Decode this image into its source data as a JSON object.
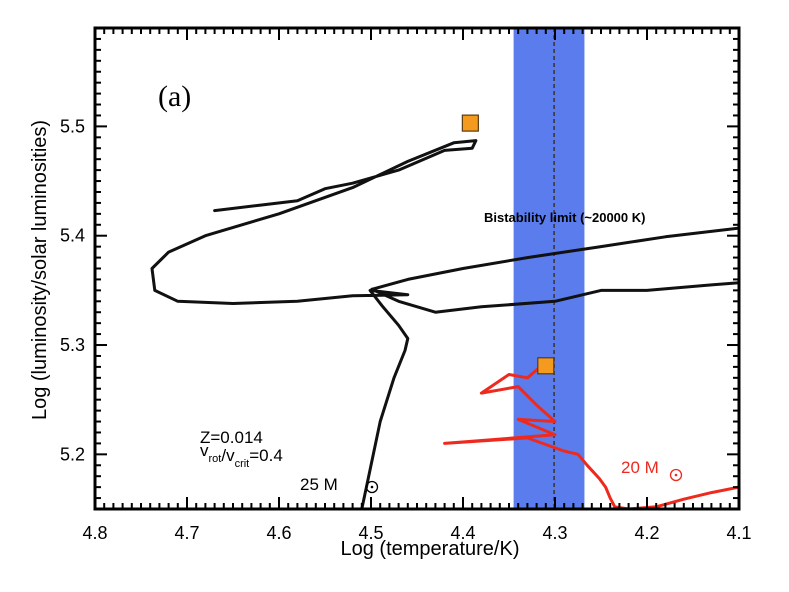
{
  "chart_data": {
    "type": "line",
    "panel_label": "(a)",
    "xlabel": "Log (temperature/K)",
    "ylabel": "Log (luminosity/solar luminosities)",
    "xlim": [
      4.8,
      4.1
    ],
    "ylim": [
      5.15,
      5.59
    ],
    "x_ticks": [
      4.8,
      4.7,
      4.6,
      4.5,
      4.4,
      4.3,
      4.2,
      4.1
    ],
    "x_tick_labels": [
      "4.8",
      "4.7",
      "4.6",
      "4.5",
      "4.4",
      "4.3",
      "4.2",
      "4.1"
    ],
    "y_ticks": [
      5.2,
      5.3,
      5.4,
      5.5
    ],
    "y_tick_labels": [
      "5.2",
      "5.3",
      "5.4",
      "5.5"
    ],
    "bistability_band": {
      "x_from": 4.345,
      "x_to": 4.268,
      "center": 4.301,
      "color": "#5b7cec"
    },
    "bistability_label": "Bistability limit (~20000 K)",
    "composition": {
      "z_label": "Z=0.014",
      "vrot_sub": "rot",
      "vcrit_sub": "crit",
      "vrot_value": "/v",
      "vrot_tail": "=0.4"
    },
    "series": [
      {
        "name": "25 Msun",
        "label_mass": "25 M",
        "color": "#111111",
        "points": [
          [
            4.51,
            5.15
          ],
          [
            4.5,
            5.19
          ],
          [
            4.49,
            5.23
          ],
          [
            4.475,
            5.27
          ],
          [
            4.463,
            5.295
          ],
          [
            4.46,
            5.306
          ],
          [
            4.47,
            5.318
          ],
          [
            4.488,
            5.336
          ],
          [
            4.501,
            5.35
          ],
          [
            4.46,
            5.346
          ],
          [
            4.52,
            5.345
          ],
          [
            4.58,
            5.34
          ],
          [
            4.65,
            5.338
          ],
          [
            4.71,
            5.34
          ],
          [
            4.735,
            5.35
          ],
          [
            4.738,
            5.37
          ],
          [
            4.72,
            5.385
          ],
          [
            4.68,
            5.4
          ],
          [
            4.6,
            5.42
          ],
          [
            4.52,
            5.444
          ],
          [
            4.46,
            5.468
          ],
          [
            4.41,
            5.485
          ],
          [
            4.386,
            5.487
          ],
          [
            4.39,
            5.48
          ],
          [
            4.42,
            5.478
          ],
          [
            4.47,
            5.46
          ],
          [
            4.52,
            5.448
          ],
          [
            4.55,
            5.443
          ],
          [
            4.58,
            5.432
          ],
          [
            4.62,
            5.428
          ],
          [
            4.67,
            5.423
          ]
        ]
      },
      {
        "name": "25 Msun rising branch",
        "color": "#111111",
        "points": [
          [
            4.499,
            5.351
          ],
          [
            4.47,
            5.34
          ],
          [
            4.43,
            5.33
          ],
          [
            4.38,
            5.335
          ],
          [
            4.3,
            5.34
          ],
          [
            4.25,
            5.35
          ],
          [
            4.2,
            5.35
          ],
          [
            4.13,
            5.355
          ],
          [
            4.1,
            5.357
          ]
        ]
      },
      {
        "name": "25 Msun upper branch",
        "color": "#111111",
        "points": [
          [
            4.499,
            5.351
          ],
          [
            4.46,
            5.36
          ],
          [
            4.4,
            5.37
          ],
          [
            4.33,
            5.38
          ],
          [
            4.25,
            5.39
          ],
          [
            4.18,
            5.399
          ],
          [
            4.1,
            5.407
          ]
        ]
      },
      {
        "name": "20 Msun",
        "label_mass": "20 M",
        "color": "#ee2a1e",
        "points": [
          [
            4.312,
            5.283
          ],
          [
            4.33,
            5.27
          ],
          [
            4.35,
            5.273
          ],
          [
            4.38,
            5.256
          ],
          [
            4.34,
            5.262
          ],
          [
            4.32,
            5.245
          ],
          [
            4.3,
            5.23
          ],
          [
            4.34,
            5.232
          ],
          [
            4.3,
            5.218
          ],
          [
            4.42,
            5.21
          ],
          [
            4.33,
            5.215
          ],
          [
            4.29,
            5.203
          ],
          [
            4.275,
            5.2
          ],
          [
            4.265,
            5.19
          ],
          [
            4.252,
            5.178
          ],
          [
            4.245,
            5.17
          ],
          [
            4.24,
            5.16
          ],
          [
            4.235,
            5.152
          ],
          [
            4.22,
            5.15
          ],
          [
            4.19,
            5.152
          ],
          [
            4.16,
            5.159
          ],
          [
            4.13,
            5.165
          ],
          [
            4.1,
            5.17
          ]
        ]
      }
    ],
    "markers": [
      {
        "name": "blue supergiant end (25 Msun)",
        "x": 4.392,
        "y": 5.503,
        "color": "#f39a1f"
      },
      {
        "name": "blue supergiant end (20 Msun)",
        "x": 4.31,
        "y": 5.281,
        "color": "#f39a1f"
      }
    ]
  }
}
